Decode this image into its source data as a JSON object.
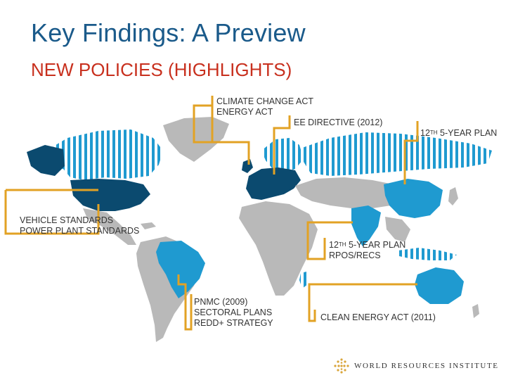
{
  "title": "Key Findings: A Preview",
  "subtitle": "NEW POLICIES (HIGHLIGHTS)",
  "colors": {
    "land": "#b9b9b9",
    "new_policy_dark": "#0b4a6f",
    "new_policy_light": "#1f9ad0",
    "stripe": "#1f9ad0",
    "connector": "#e2a224",
    "title": "#1a5a8a",
    "subtitle": "#c8301e"
  },
  "callouts": {
    "europe_climate": {
      "line1": "CLIMATE CHANGE ACT",
      "line2": "ENERGY ACT"
    },
    "eu_ee": {
      "line1": "EE DIRECTIVE (2012)"
    },
    "china": {
      "prefix": "12",
      "sup": "TH",
      "suffix": " 5-YEAR PLAN"
    },
    "us": {
      "line1": "VEHICLE STANDARDS",
      "line2": "POWER PLANT STANDARDS"
    },
    "india": {
      "prefix": "12",
      "sup": "TH",
      "suffix": " 5-YEAR PLAN",
      "line2": "RPOS/RECS"
    },
    "brazil": {
      "line1": "PNMC (2009)",
      "line2": "SECTORAL PLANS",
      "line3": "REDD+ STRATEGY"
    },
    "australia": {
      "line1": "CLEAN ENERGY ACT (2011)"
    }
  },
  "logo": {
    "text": "WORLD RESOURCES INSTITUTE",
    "icon": "wri-logo-icon"
  }
}
